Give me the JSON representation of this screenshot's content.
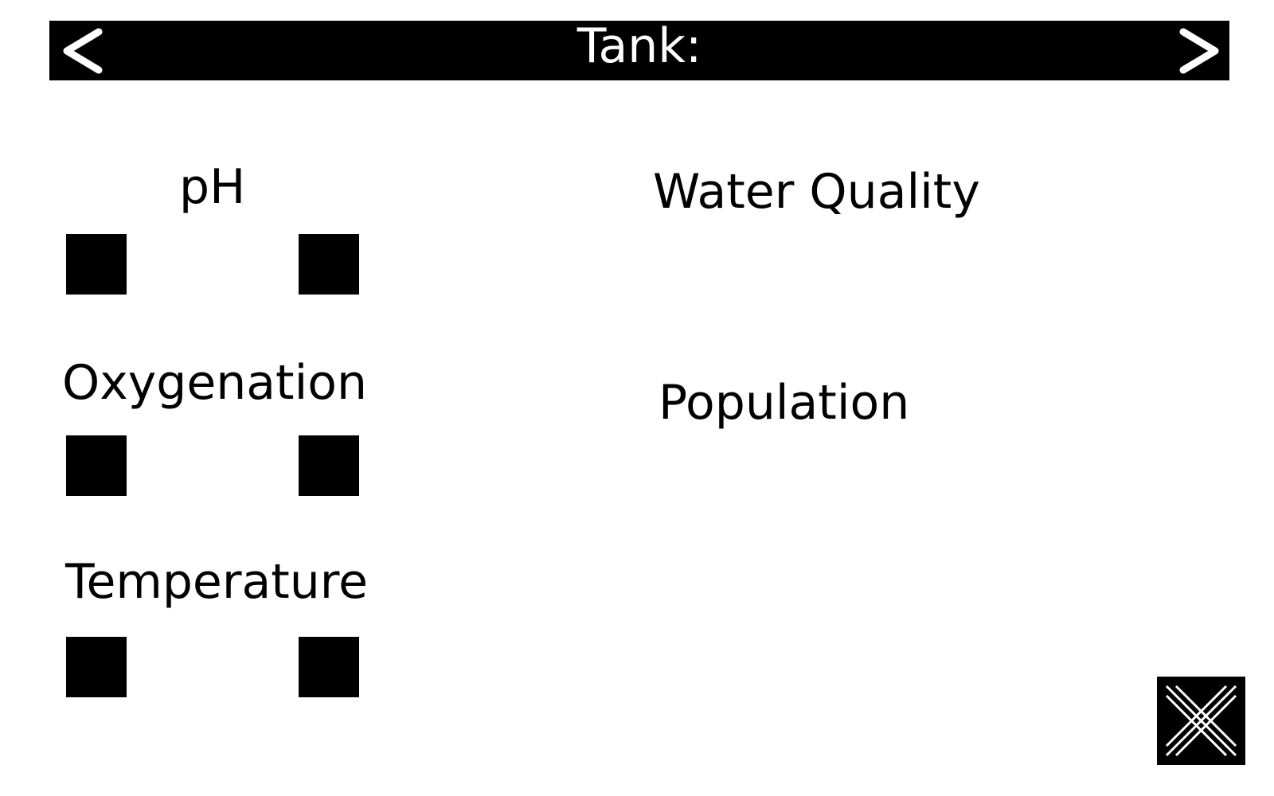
{
  "header": {
    "title": "Tank:",
    "prev_icon": "chevron-left-icon",
    "next_icon": "chevron-right-icon"
  },
  "controls": [
    {
      "label": "pH",
      "decrease_icon": "square-button",
      "increase_icon": "square-button"
    },
    {
      "label": "Oxygenation",
      "decrease_icon": "square-button",
      "increase_icon": "square-button"
    },
    {
      "label": "Temperature",
      "decrease_icon": "square-button",
      "increase_icon": "square-button"
    }
  ],
  "info": {
    "water_quality_label": "Water Quality",
    "population_label": "Population"
  },
  "close": {
    "icon": "close-x-icon"
  },
  "colors": {
    "background": "#ffffff",
    "foreground": "#000000",
    "header_text": "#ffffff"
  }
}
